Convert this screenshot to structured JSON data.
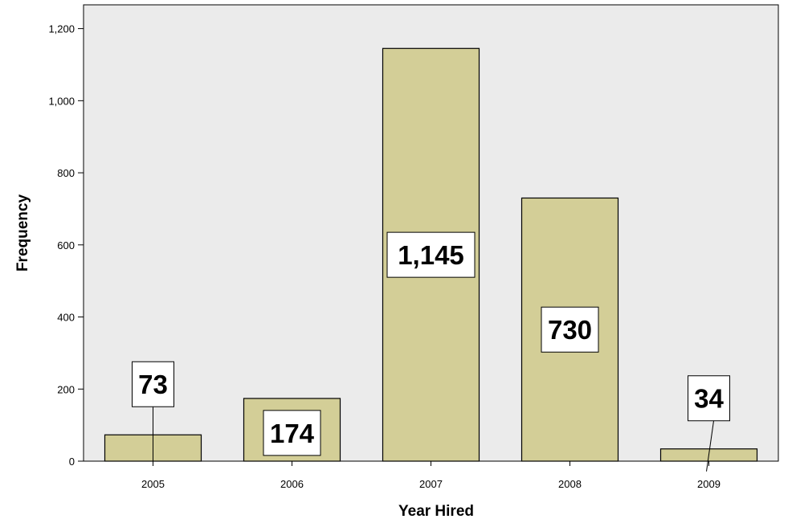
{
  "chart_data": {
    "type": "bar",
    "categories": [
      "2005",
      "2006",
      "2007",
      "2008",
      "2009"
    ],
    "values": [
      73,
      174,
      1145,
      730,
      34
    ],
    "data_labels": [
      "73",
      "174",
      "1,145",
      "730",
      "34"
    ],
    "xlabel": "Year Hired",
    "ylabel": "Frequency",
    "ylim": [
      0,
      1200
    ],
    "yticks": [
      0,
      200,
      400,
      600,
      800,
      1000,
      1200
    ],
    "ytick_labels": [
      "0",
      "200",
      "400",
      "600",
      "800",
      "1,000",
      "1,200"
    ],
    "grid": false,
    "colors": {
      "plot_background": "#ebebeb",
      "bar_fill": "#d3ce97",
      "bar_stroke": "#000000"
    }
  }
}
